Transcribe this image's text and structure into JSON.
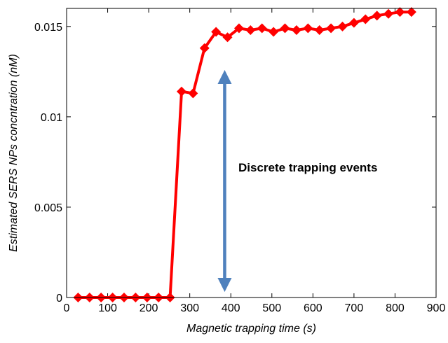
{
  "chart_data": {
    "type": "line",
    "title": "",
    "xlabel": "Magnetic trapping time (s)",
    "ylabel": "Estimated SERS NPs concntration (nM)",
    "xlim": [
      0,
      900
    ],
    "ylim": [
      0,
      0.016
    ],
    "xticks": [
      0,
      100,
      200,
      300,
      400,
      500,
      600,
      700,
      800,
      900
    ],
    "yticks": [
      0,
      0.005,
      0.01,
      0.015
    ],
    "xtick_labels": [
      "0",
      "100",
      "200",
      "300",
      "400",
      "500",
      "600",
      "700",
      "800",
      "900"
    ],
    "ytick_labels": [
      "0",
      "0.005",
      "0.01",
      "0.015"
    ],
    "grid": false,
    "legend": "none",
    "series": [
      {
        "color": "#ff0000",
        "marker": "diamond",
        "x": [
          28,
          56,
          84,
          112,
          140,
          168,
          196,
          224,
          252,
          280,
          308,
          336,
          364,
          392,
          420,
          448,
          476,
          504,
          532,
          560,
          588,
          616,
          644,
          672,
          700,
          728,
          756,
          784,
          812,
          840
        ],
        "y": [
          0,
          0,
          0,
          0,
          0,
          0,
          0,
          0,
          0,
          0.0114,
          0.0113,
          0.0138,
          0.0147,
          0.0144,
          0.0149,
          0.0148,
          0.0149,
          0.0147,
          0.0149,
          0.0148,
          0.0149,
          0.0148,
          0.0149,
          0.015,
          0.0152,
          0.0154,
          0.0156,
          0.0157,
          0.0158,
          0.0158
        ]
      }
    ],
    "annotations": [
      {
        "text": "Discrete trapping events",
        "arrow": "double-headed",
        "arrow_color": "#4f81bd",
        "arrow_x": 385,
        "arrow_y_range": [
          0.0007,
          0.0122
        ]
      }
    ]
  }
}
